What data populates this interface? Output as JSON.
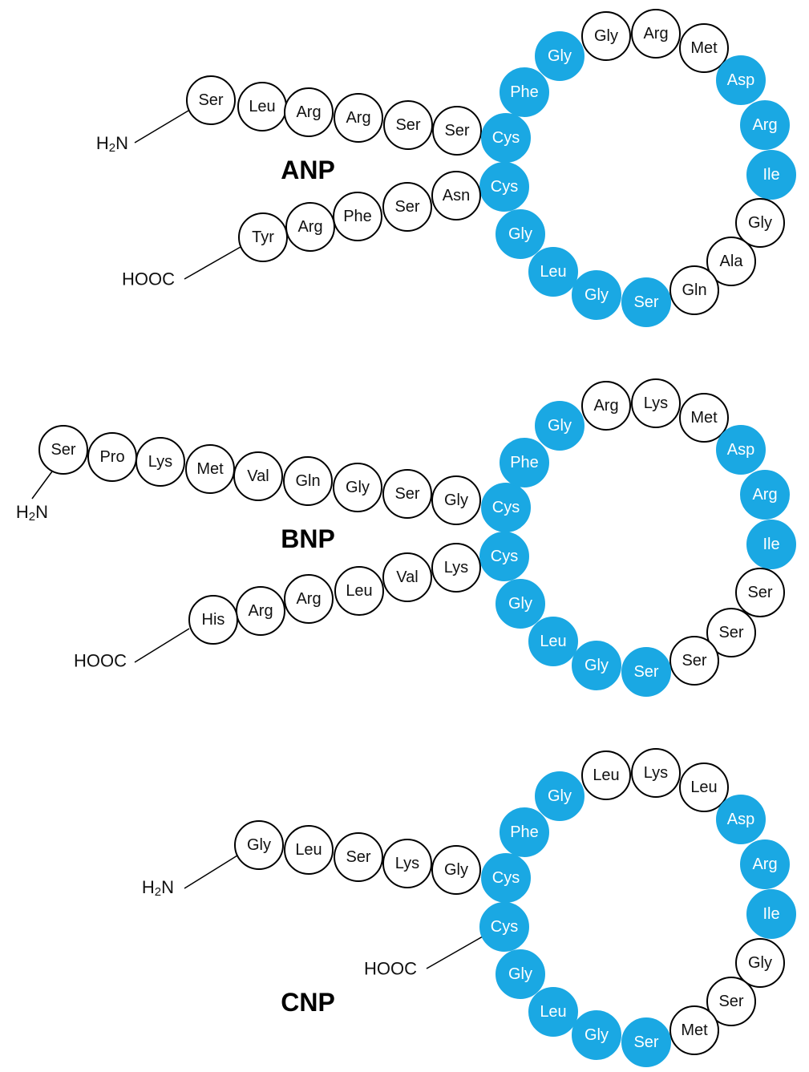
{
  "colors": {
    "conserved": "#1aa8e3",
    "variable": "#ffffff",
    "outline": "#000000"
  },
  "peptides": [
    {
      "name": "ANP",
      "n_terminus": "H2N",
      "c_terminus": "HOOC",
      "n_tail": [
        "Ser",
        "Leu",
        "Arg",
        "Arg",
        "Ser",
        "Ser"
      ],
      "ring": [
        {
          "label": "Cys",
          "conserved": true
        },
        {
          "label": "Phe",
          "conserved": true
        },
        {
          "label": "Gly",
          "conserved": true
        },
        {
          "label": "Gly",
          "conserved": false
        },
        {
          "label": "Arg",
          "conserved": false
        },
        {
          "label": "Met",
          "conserved": false
        },
        {
          "label": "Asp",
          "conserved": true
        },
        {
          "label": "Arg",
          "conserved": true
        },
        {
          "label": "Ile",
          "conserved": true
        },
        {
          "label": "Gly",
          "conserved": false
        },
        {
          "label": "Ala",
          "conserved": false
        },
        {
          "label": "Gln",
          "conserved": false
        },
        {
          "label": "Ser",
          "conserved": true
        },
        {
          "label": "Gly",
          "conserved": true
        },
        {
          "label": "Leu",
          "conserved": true
        },
        {
          "label": "Gly",
          "conserved": true
        },
        {
          "label": "Cys",
          "conserved": true
        }
      ],
      "c_tail": [
        "Asn",
        "Ser",
        "Phe",
        "Arg",
        "Tyr"
      ]
    },
    {
      "name": "BNP",
      "n_terminus": "H2N",
      "c_terminus": "HOOC",
      "n_tail": [
        "Ser",
        "Pro",
        "Lys",
        "Met",
        "Val",
        "Gln",
        "Gly",
        "Ser",
        "Gly"
      ],
      "ring": [
        {
          "label": "Cys",
          "conserved": true
        },
        {
          "label": "Phe",
          "conserved": true
        },
        {
          "label": "Gly",
          "conserved": true
        },
        {
          "label": "Arg",
          "conserved": false
        },
        {
          "label": "Lys",
          "conserved": false
        },
        {
          "label": "Met",
          "conserved": false
        },
        {
          "label": "Asp",
          "conserved": true
        },
        {
          "label": "Arg",
          "conserved": true
        },
        {
          "label": "Ile",
          "conserved": true
        },
        {
          "label": "Ser",
          "conserved": false
        },
        {
          "label": "Ser",
          "conserved": false
        },
        {
          "label": "Ser",
          "conserved": false
        },
        {
          "label": "Ser",
          "conserved": true
        },
        {
          "label": "Gly",
          "conserved": true
        },
        {
          "label": "Leu",
          "conserved": true
        },
        {
          "label": "Gly",
          "conserved": true
        },
        {
          "label": "Cys",
          "conserved": true
        }
      ],
      "c_tail": [
        "Lys",
        "Val",
        "Leu",
        "Arg",
        "Arg",
        "His"
      ]
    },
    {
      "name": "CNP",
      "n_terminus": "H2N",
      "c_terminus": "HOOC",
      "n_tail": [
        "Gly",
        "Leu",
        "Ser",
        "Lys",
        "Gly"
      ],
      "ring": [
        {
          "label": "Cys",
          "conserved": true
        },
        {
          "label": "Phe",
          "conserved": true
        },
        {
          "label": "Gly",
          "conserved": true
        },
        {
          "label": "Leu",
          "conserved": false
        },
        {
          "label": "Lys",
          "conserved": false
        },
        {
          "label": "Leu",
          "conserved": false
        },
        {
          "label": "Asp",
          "conserved": true
        },
        {
          "label": "Arg",
          "conserved": true
        },
        {
          "label": "Ile",
          "conserved": true
        },
        {
          "label": "Gly",
          "conserved": false
        },
        {
          "label": "Ser",
          "conserved": false
        },
        {
          "label": "Met",
          "conserved": false
        },
        {
          "label": "Ser",
          "conserved": true
        },
        {
          "label": "Gly",
          "conserved": true
        },
        {
          "label": "Leu",
          "conserved": true
        },
        {
          "label": "Gly",
          "conserved": true
        },
        {
          "label": "Cys",
          "conserved": true
        }
      ],
      "c_tail": []
    }
  ]
}
